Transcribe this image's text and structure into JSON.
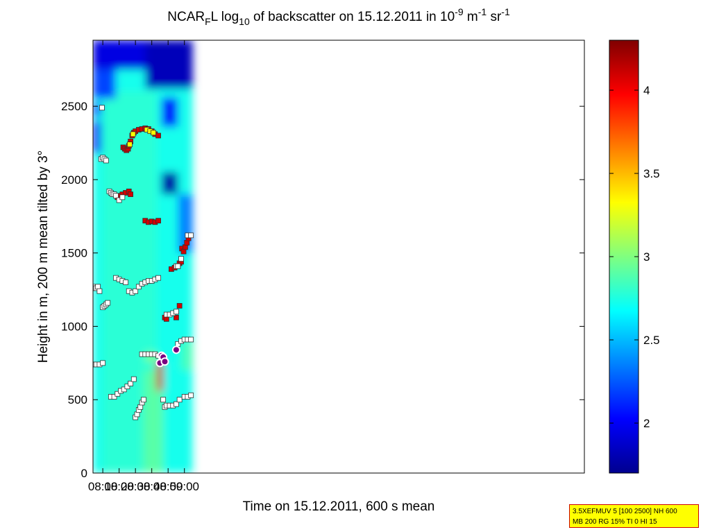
{
  "chart_data": {
    "type": "heatmap",
    "title_parts": {
      "prefix": "NCAR",
      "sub1": "F",
      "mid1": "L log",
      "sub2": "10",
      "mid2": " of backscatter on 15.12.2011 in 10",
      "sup1": "-9",
      "mid3": " m",
      "sup2": "-1",
      "mid4": " sr",
      "sup3": "-1"
    },
    "xlabel": "Time on 15.12.2011, 600 s mean",
    "ylabel": "Height in m, 200 m mean tilted by 3°",
    "xlim": [
      244,
      545
    ],
    "ylim": [
      0,
      2950
    ],
    "x_ticks": [
      {
        "value": 250,
        "label": "08:10"
      },
      {
        "value": 260,
        "label": "08:20"
      },
      {
        "value": 270,
        "label": "08:30"
      },
      {
        "value": 280,
        "label": "08:40"
      },
      {
        "value": 290,
        "label": "08:50"
      },
      {
        "value": 300,
        "label": "09:00"
      }
    ],
    "y_ticks": [
      {
        "value": 0,
        "label": "0"
      },
      {
        "value": 500,
        "label": "500"
      },
      {
        "value": 1000,
        "label": "1000"
      },
      {
        "value": 1500,
        "label": "1500"
      },
      {
        "value": 2000,
        "label": "2000"
      },
      {
        "value": 2500,
        "label": "2500"
      }
    ],
    "colorbar": {
      "range": [
        1.7,
        4.3
      ],
      "ticks": [
        {
          "value": 2,
          "label": "2"
        },
        {
          "value": 2.5,
          "label": "2.5"
        },
        {
          "value": 3,
          "label": "3"
        },
        {
          "value": 3.5,
          "label": "3.5"
        },
        {
          "value": 4,
          "label": "4"
        }
      ]
    },
    "background_layers": [
      {
        "t0": 244,
        "t1": 305,
        "h0": 0,
        "h1": 2950,
        "value": 2.72
      },
      {
        "t0": 250,
        "t1": 283,
        "h0": 0,
        "h1": 2600,
        "value": 2.78
      },
      {
        "t0": 275,
        "t1": 287,
        "h0": 0,
        "h1": 700,
        "value": 2.9
      },
      {
        "t0": 298,
        "t1": 305,
        "h0": 700,
        "h1": 900,
        "value": 2.85
      },
      {
        "t0": 244,
        "t1": 305,
        "h0": 2750,
        "h1": 2950,
        "value": 1.95
      },
      {
        "t0": 244,
        "t1": 258,
        "h0": 2550,
        "h1": 2750,
        "value": 2.2
      },
      {
        "t0": 276,
        "t1": 305,
        "h0": 2620,
        "h1": 2950,
        "value": 1.85
      },
      {
        "t0": 244,
        "t1": 249,
        "h0": 2180,
        "h1": 2400,
        "value": 2.0
      },
      {
        "t0": 286,
        "t1": 296,
        "h0": 1900,
        "h1": 2050,
        "value": 1.8
      },
      {
        "t0": 286,
        "t1": 296,
        "h0": 2360,
        "h1": 2560,
        "value": 2.05
      },
      {
        "t0": 244,
        "t1": 249,
        "h0": 2430,
        "h1": 2520,
        "value": 2.1
      },
      {
        "t0": 296,
        "t1": 305,
        "h0": 1500,
        "h1": 1900,
        "value": 2.35
      },
      {
        "t0": 283,
        "t1": 287,
        "h0": 560,
        "h1": 760,
        "value": 4.1
      },
      {
        "t0": 276,
        "t1": 283,
        "h0": 760,
        "h1": 820,
        "value": 3.0
      }
    ],
    "series": [
      {
        "name": "layer-2300",
        "color": "#d40000",
        "points": [
          [
            262.5,
            2220
          ],
          [
            263.5,
            2210
          ],
          [
            264.5,
            2200
          ],
          [
            265.5,
            2210
          ],
          [
            266,
            2230
          ],
          [
            267,
            2260
          ],
          [
            268,
            2300
          ],
          [
            269,
            2320
          ],
          [
            270,
            2330
          ],
          [
            272,
            2340
          ],
          [
            274,
            2345
          ],
          [
            276,
            2350
          ],
          [
            278,
            2345
          ],
          [
            280,
            2330
          ],
          [
            282,
            2310
          ],
          [
            284,
            2300
          ]
        ]
      },
      {
        "name": "layer-2300-yellow",
        "color": "#ffff00",
        "points": [
          [
            266.5,
            2240
          ],
          [
            268.5,
            2310
          ],
          [
            277,
            2340
          ],
          [
            279,
            2330
          ],
          [
            281,
            2320
          ]
        ]
      },
      {
        "name": "layer-1900",
        "color": "#d40000",
        "points": [
          [
            259,
            1880
          ],
          [
            260,
            1890
          ],
          [
            262,
            1900
          ],
          [
            264,
            1910
          ],
          [
            266,
            1920
          ],
          [
            267,
            1900
          ]
        ]
      },
      {
        "name": "layer-1700",
        "color": "#d40000",
        "points": [
          [
            276,
            1720
          ],
          [
            278,
            1710
          ],
          [
            280,
            1715
          ],
          [
            282,
            1710
          ],
          [
            284,
            1720
          ]
        ]
      },
      {
        "name": "layer-1400",
        "color": "#d40000",
        "points": [
          [
            292,
            1390
          ],
          [
            294,
            1400
          ],
          [
            296,
            1410
          ],
          [
            297,
            1430
          ],
          [
            298,
            1440
          ]
        ]
      },
      {
        "name": "layer-1550",
        "color": "#d40000",
        "points": [
          [
            298.5,
            1530
          ],
          [
            299.5,
            1510
          ],
          [
            300.5,
            1540
          ],
          [
            301.5,
            1570
          ],
          [
            302.5,
            1600
          ]
        ]
      },
      {
        "name": "layer-1050",
        "color": "#d40000",
        "points": [
          [
            288,
            1060
          ],
          [
            289,
            1050
          ],
          [
            295,
            1060
          ],
          [
            297,
            1140
          ]
        ]
      },
      {
        "name": "white-2100",
        "color": "#ffffff",
        "points": [
          [
            249,
            2140
          ],
          [
            250,
            2150
          ],
          [
            251,
            2140
          ],
          [
            252,
            2130
          ]
        ]
      },
      {
        "name": "white-1900",
        "color": "#ffffff",
        "points": [
          [
            254,
            1920
          ],
          [
            255,
            1910
          ],
          [
            256,
            1900
          ],
          [
            257,
            1900
          ],
          [
            258,
            1890
          ],
          [
            260,
            1860
          ],
          [
            262,
            1880
          ]
        ]
      },
      {
        "name": "white-1300",
        "color": "#ffffff",
        "points": [
          [
            244,
            1270
          ],
          [
            245,
            1260
          ],
          [
            246,
            1260
          ],
          [
            247,
            1270
          ],
          [
            248,
            1240
          ],
          [
            258,
            1330
          ],
          [
            260,
            1320
          ],
          [
            262,
            1310
          ],
          [
            264,
            1300
          ],
          [
            266,
            1240
          ],
          [
            268,
            1230
          ],
          [
            270,
            1240
          ],
          [
            272,
            1270
          ],
          [
            274,
            1290
          ],
          [
            276,
            1300
          ],
          [
            278,
            1310
          ],
          [
            280,
            1310
          ],
          [
            282,
            1320
          ],
          [
            284,
            1330
          ]
        ]
      },
      {
        "name": "white-1150",
        "color": "#ffffff",
        "points": [
          [
            250,
            1130
          ],
          [
            251,
            1140
          ],
          [
            252,
            1150
          ],
          [
            253,
            1160
          ]
        ]
      },
      {
        "name": "white-550",
        "color": "#ffffff",
        "points": [
          [
            255,
            520
          ],
          [
            257,
            520
          ],
          [
            259,
            540
          ],
          [
            261,
            560
          ],
          [
            263,
            570
          ],
          [
            265,
            590
          ],
          [
            267,
            610
          ],
          [
            269,
            640
          ]
        ]
      },
      {
        "name": "white-800",
        "color": "#ffffff",
        "points": [
          [
            244,
            740
          ],
          [
            246,
            740
          ],
          [
            248,
            740
          ],
          [
            250,
            750
          ],
          [
            274,
            810
          ],
          [
            276,
            810
          ],
          [
            278,
            810
          ],
          [
            280,
            810
          ],
          [
            282,
            810
          ],
          [
            284,
            800
          ]
        ]
      },
      {
        "name": "white-450",
        "color": "#ffffff",
        "points": [
          [
            270,
            380
          ],
          [
            271,
            400
          ],
          [
            272,
            430
          ],
          [
            273,
            450
          ],
          [
            274,
            480
          ],
          [
            275,
            500
          ]
        ]
      },
      {
        "name": "white-460",
        "color": "#ffffff",
        "points": [
          [
            287,
            500
          ],
          [
            288,
            450
          ],
          [
            289,
            460
          ],
          [
            291,
            460
          ],
          [
            293,
            460
          ],
          [
            295,
            470
          ],
          [
            297,
            500
          ]
        ]
      },
      {
        "name": "white-900",
        "color": "#ffffff",
        "points": [
          [
            296,
            880
          ],
          [
            298,
            900
          ],
          [
            300,
            910
          ],
          [
            302,
            910
          ],
          [
            304,
            910
          ]
        ]
      },
      {
        "name": "white-1100",
        "color": "#ffffff",
        "points": [
          [
            289,
            1080
          ],
          [
            291,
            1080
          ],
          [
            293,
            1090
          ],
          [
            295,
            1100
          ]
        ]
      },
      {
        "name": "white-1400",
        "color": "#ffffff",
        "points": [
          [
            295,
            1410
          ],
          [
            296,
            1410
          ],
          [
            298,
            1460
          ],
          [
            302,
            1620
          ],
          [
            304,
            1620
          ]
        ]
      },
      {
        "name": "white-520",
        "color": "#ffffff",
        "points": [
          [
            300,
            520
          ],
          [
            302,
            520
          ],
          [
            304,
            530
          ]
        ]
      },
      {
        "name": "white-2500",
        "color": "#ffffff",
        "points": [
          [
            249.5,
            2490
          ]
        ]
      },
      {
        "name": "purple-800",
        "color": "#7a0080",
        "points": [
          [
            285,
            750
          ],
          [
            286,
            800
          ],
          [
            287,
            790
          ],
          [
            288,
            760
          ],
          [
            295,
            840
          ]
        ]
      }
    ]
  },
  "info_box": {
    "line1": "3.5XEFMUV 5 [100 2500] NH 600",
    "line2": "MB 200 RG 15% TI 0 HI 15"
  }
}
